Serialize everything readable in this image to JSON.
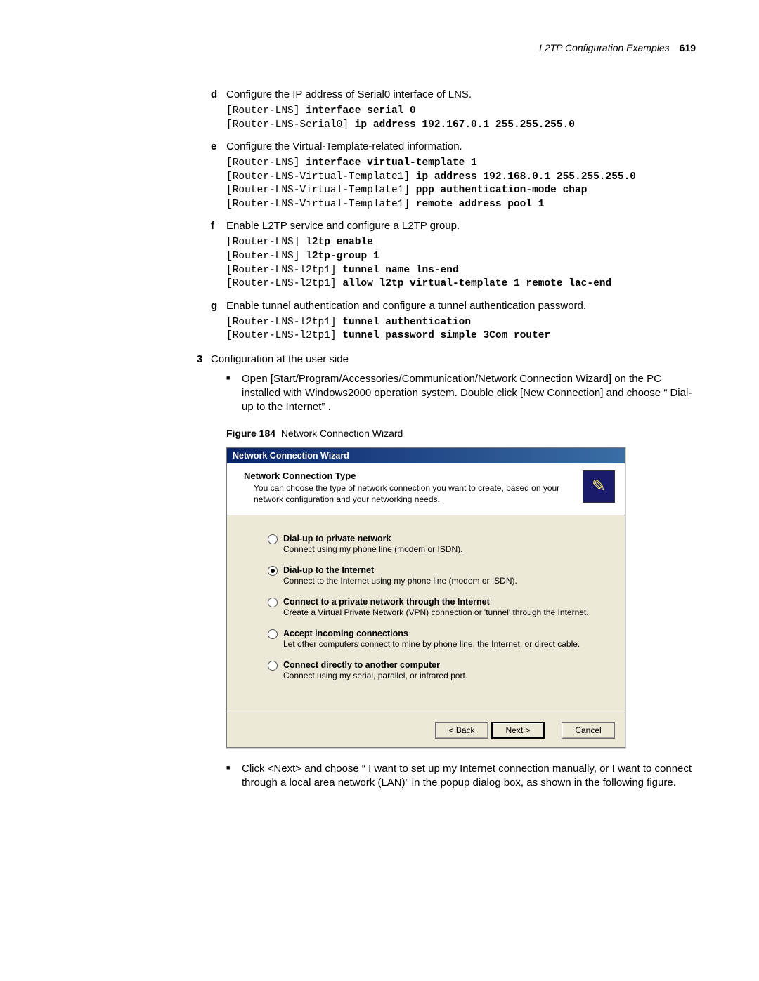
{
  "header": {
    "section": "L2TP Configuration Examples",
    "page": "619"
  },
  "steps": {
    "d": {
      "text": "Configure the IP address of Serial0 interface of LNS.",
      "cmd": "[Router-LNS] <b>interface serial 0</b>\n[Router-LNS-Serial0] <b>ip address 192.167.0.1 255.255.255.0</b>"
    },
    "e": {
      "text": "Configure the Virtual-Template-related information.",
      "cmd": "[Router-LNS] <b>interface virtual-template 1</b>\n[Router-LNS-Virtual-Template1] <b>ip address 192.168.0.1 255.255.255.0</b>\n[Router-LNS-Virtual-Template1] <b>ppp authentication-mode chap</b>\n[Router-LNS-Virtual-Template1] <b>remote address pool 1</b>"
    },
    "f": {
      "text": "Enable L2TP service and configure a L2TP group.",
      "cmd": "[Router-LNS] <b>l2tp enable</b>\n[Router-LNS] <b>l2tp-group 1</b>\n[Router-LNS-l2tp1] <b>tunnel name lns-end</b>\n[Router-LNS-l2tp1] <b>allow l2tp virtual-template 1 remote lac-end</b>"
    },
    "g": {
      "text": "Enable tunnel authentication and configure a tunnel authentication password.",
      "cmd": "[Router-LNS-l2tp1] <b>tunnel authentication</b>\n[Router-LNS-l2tp1] <b>tunnel password simple 3Com router</b>"
    }
  },
  "num3": "Configuration at the user side",
  "bullets": {
    "b1": "Open [Start/Program/Accessories/Communication/Network Connection Wizard] on the PC installed with Windows2000 operation system. Double click [New Connection] and choose “ Dial-up to the Internet” .",
    "b2": "Click <Next> and choose “ I want to set up my Internet connection manually, or I want to connect through a local area network (LAN)”  in the popup dialog box, as shown in the following figure."
  },
  "figure": {
    "label": "Figure 184",
    "caption": "Network Connection Wizard"
  },
  "wizard": {
    "title": "Network Connection Wizard",
    "head_title": "Network Connection Type",
    "head_sub": "You can choose the type of network connection you want to create, based on your network configuration and your networking needs.",
    "icon_glyph": "✎",
    "options": [
      {
        "t": "Dial-up to private network",
        "d": "Connect using my phone line (modem or ISDN).",
        "sel": false
      },
      {
        "t": "Dial-up to the Internet",
        "d": "Connect to the Internet using my phone line (modem or ISDN).",
        "sel": true
      },
      {
        "t": "Connect to a private network through the Internet",
        "d": "Create a Virtual Private Network (VPN) connection or 'tunnel' through the Internet.",
        "sel": false
      },
      {
        "t": "Accept incoming connections",
        "d": "Let other computers connect to mine by phone line, the Internet, or direct cable.",
        "sel": false
      },
      {
        "t": "Connect directly to another computer",
        "d": "Connect using my serial, parallel, or infrared port.",
        "sel": false
      }
    ],
    "buttons": {
      "back": "< Back",
      "next": "Next >",
      "cancel": "Cancel"
    }
  }
}
